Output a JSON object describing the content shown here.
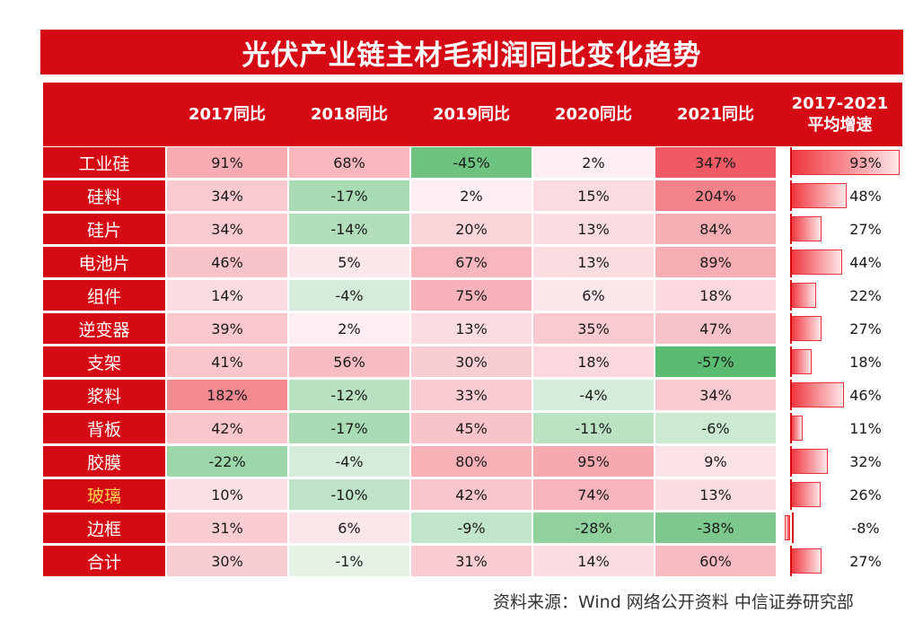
{
  "title": "光伏产业链主材毛利润同比变化趋势",
  "columns": [
    "2017同比",
    "2018同比",
    "2019同比",
    "2020同比",
    "2021同比",
    "2017-2021\n平均增速"
  ],
  "source": "资料来源：Wind 网络公开资料 中信证券研究部",
  "colors": {
    "brand_red": "#d50a15",
    "highlight_label": "#ffd34d",
    "pos_max": "#ef5a64",
    "neg_max": "#5bbb70"
  },
  "chart_data": {
    "type": "table",
    "unit": "%",
    "row_labels": [
      "工业硅",
      "硅料",
      "硅片",
      "电池片",
      "组件",
      "逆变器",
      "支架",
      "浆料",
      "背板",
      "胶膜",
      "玻璃",
      "边框",
      "合计"
    ],
    "highlighted_row": "玻璃",
    "column_labels": [
      "2017同比",
      "2018同比",
      "2019同比",
      "2020同比",
      "2021同比",
      "2017-2021平均增速"
    ],
    "display": [
      [
        "91%",
        "68%",
        "-45%",
        "2%",
        "347%",
        "93%"
      ],
      [
        "34%",
        "-17%",
        "2%",
        "15%",
        "204%",
        "48%"
      ],
      [
        "34%",
        "-14%",
        "20%",
        "13%",
        "84%",
        "27%"
      ],
      [
        "46%",
        "5%",
        "67%",
        "13%",
        "89%",
        "44%"
      ],
      [
        "14%",
        "-4%",
        "75%",
        "6%",
        "18%",
        "22%"
      ],
      [
        "39%",
        "2%",
        "13%",
        "35%",
        "47%",
        "27%"
      ],
      [
        "41%",
        "56%",
        "30%",
        "18%",
        "-57%",
        "18%"
      ],
      [
        "182%",
        "-12%",
        "33%",
        "-4%",
        "34%",
        "46%"
      ],
      [
        "42%",
        "-17%",
        "45%",
        "-11%",
        "-6%",
        "11%"
      ],
      [
        "-22%",
        "-4%",
        "80%",
        "95%",
        "9%",
        "32%"
      ],
      [
        "10%",
        "-10%",
        "42%",
        "74%",
        "13%",
        "26%"
      ],
      [
        "31%",
        "6%",
        "-9%",
        "-28%",
        "-38%",
        "-8%"
      ],
      [
        "30%",
        "-1%",
        "31%",
        "14%",
        "60%",
        "27%"
      ]
    ],
    "values": [
      [
        91,
        68,
        -45,
        2,
        347,
        93
      ],
      [
        34,
        -17,
        2,
        15,
        204,
        48
      ],
      [
        34,
        -14,
        20,
        13,
        84,
        27
      ],
      [
        46,
        5,
        67,
        13,
        89,
        44
      ],
      [
        14,
        -4,
        75,
        6,
        18,
        22
      ],
      [
        39,
        2,
        13,
        35,
        47,
        27
      ],
      [
        41,
        56,
        30,
        18,
        -57,
        18
      ],
      [
        182,
        -12,
        33,
        -4,
        34,
        46
      ],
      [
        42,
        -17,
        45,
        -11,
        -6,
        11
      ],
      [
        -22,
        -4,
        80,
        95,
        9,
        32
      ],
      [
        10,
        -10,
        42,
        74,
        13,
        26
      ],
      [
        31,
        6,
        -9,
        -28,
        -38,
        -8
      ],
      [
        30,
        -1,
        31,
        14,
        60,
        27
      ]
    ],
    "heatmap_columns": [
      0,
      1,
      2,
      3,
      4
    ],
    "databar_column": 5,
    "color_scale": {
      "negative": "green",
      "positive": "red"
    }
  }
}
